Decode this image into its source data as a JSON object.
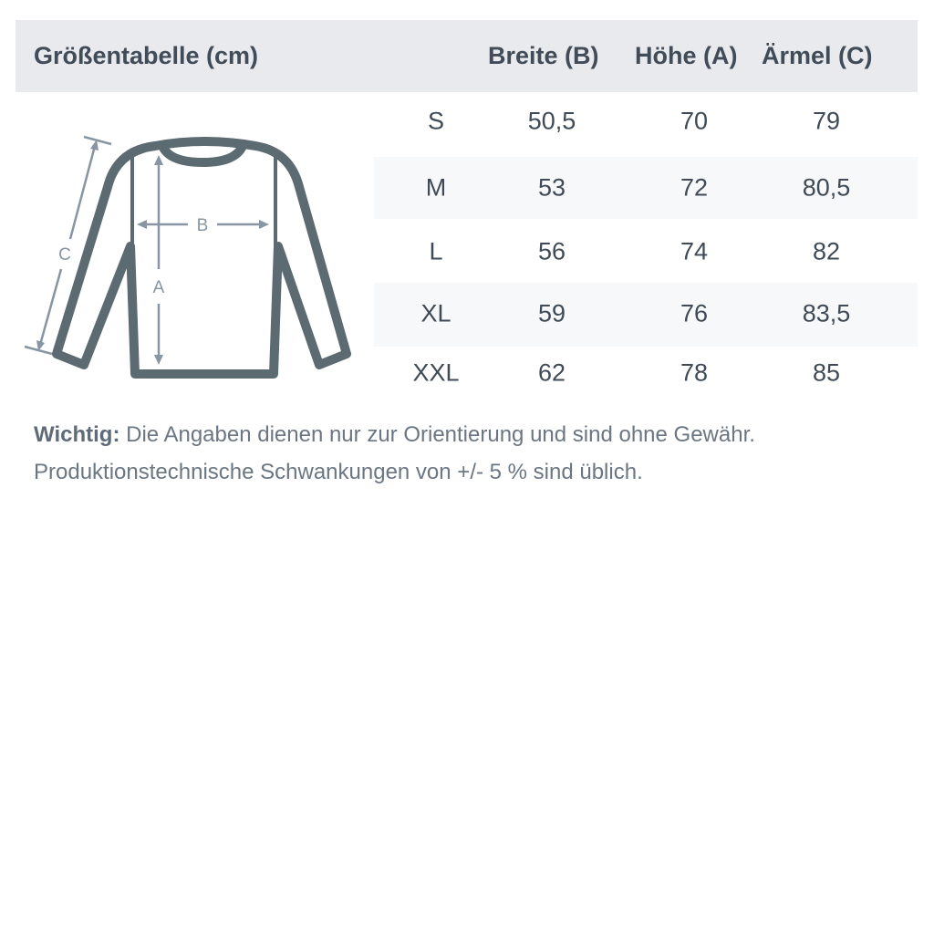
{
  "header": {
    "title": "Größentabelle (cm)",
    "columns": [
      "Breite (B)",
      "Höhe (A)",
      "Ärmel (C)"
    ]
  },
  "diagram": {
    "labels": {
      "a": "A",
      "b": "B",
      "c": "C"
    },
    "shirt_color": "#5c6a72",
    "arrow_color": "#8896a3"
  },
  "rows": [
    {
      "size": "S",
      "b": "50,5",
      "a": "70",
      "c": "79"
    },
    {
      "size": "M",
      "b": "53",
      "a": "72",
      "c": "80,5"
    },
    {
      "size": "L",
      "b": "56",
      "a": "74",
      "c": "82"
    },
    {
      "size": "XL",
      "b": "59",
      "a": "76",
      "c": "83,5"
    },
    {
      "size": "XXL",
      "b": "62",
      "a": "78",
      "c": "85"
    }
  ],
  "note": {
    "label": "Wichtig:",
    "line1": " Die Angaben dienen nur zur Orientierung und sind ohne Gewähr.",
    "line2": "Produktionstechnische Schwankungen von +/- 5 % sind üblich."
  }
}
